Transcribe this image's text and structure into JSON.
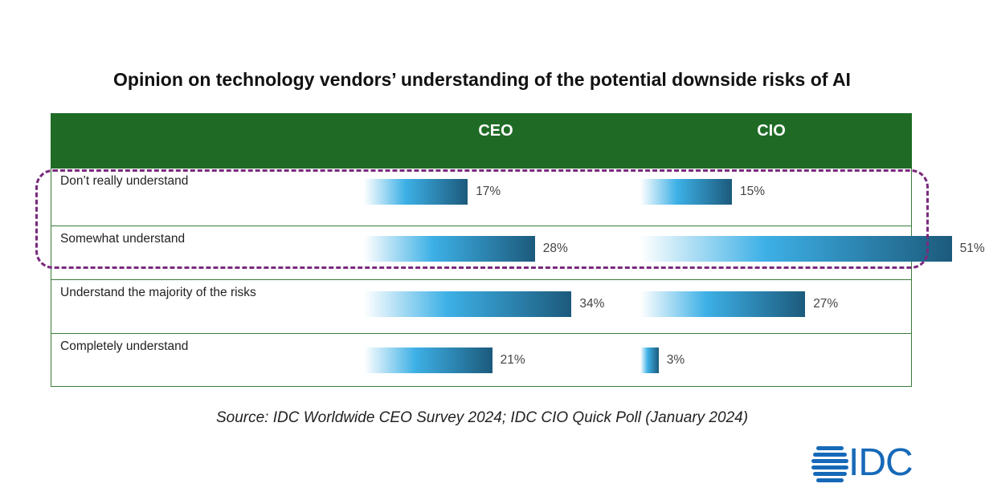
{
  "chart_data": {
    "type": "bar",
    "title": "Opinion on technology vendors’ understanding of the potential downside risks of AI",
    "categories": [
      "Don’t really understand",
      "Somewhat understand",
      "Understand the majority of the risks",
      "Completely understand"
    ],
    "series": [
      {
        "name": "CEO",
        "values": [
          17,
          28,
          34,
          21
        ]
      },
      {
        "name": "CIO",
        "values": [
          15,
          51,
          27,
          3
        ]
      }
    ],
    "value_suffix": "%",
    "highlighted_categories": [
      "Don’t really understand",
      "Somewhat understand"
    ],
    "colors": {
      "header": "#1f6b26",
      "bar_start": "#ffffff",
      "bar_mid": "#3db0e6",
      "bar_end": "#1c5a7c",
      "highlight": "#7a2a7e"
    }
  },
  "source": "Source: IDC Worldwide CEO Survey 2024; IDC CIO Quick Poll (January 2024)",
  "logo": {
    "text": "IDC"
  }
}
